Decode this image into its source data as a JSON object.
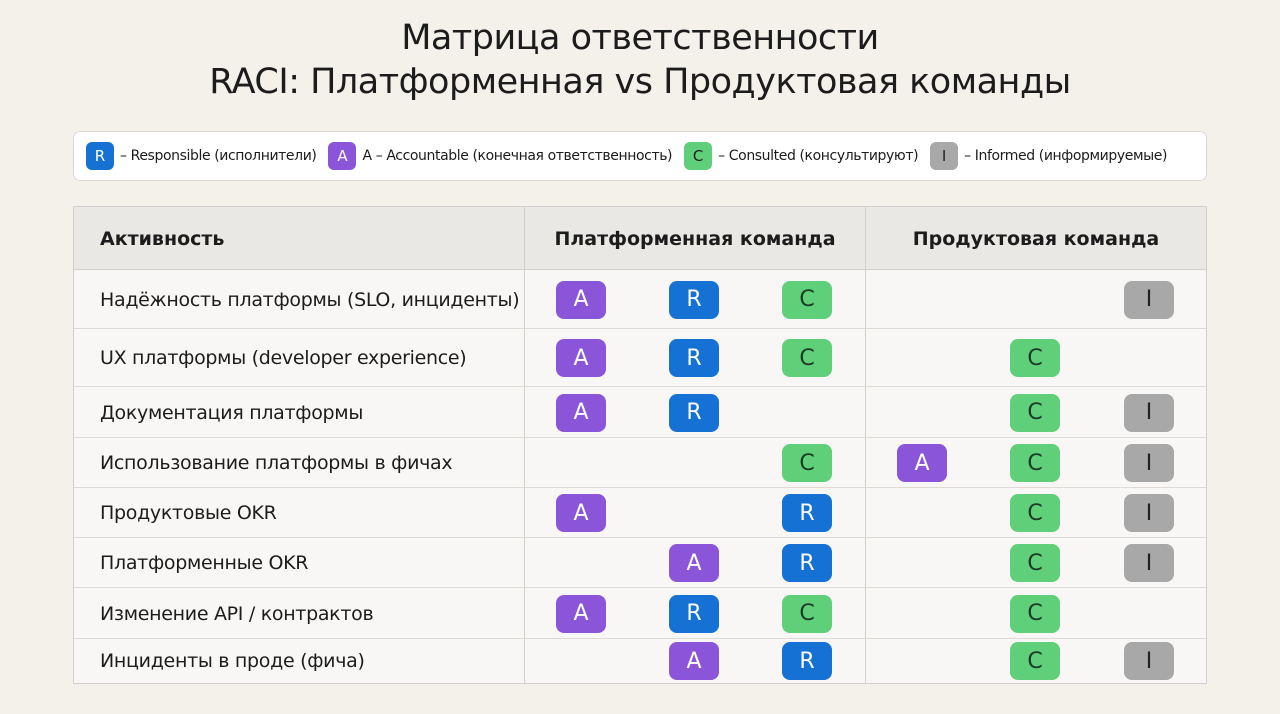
{
  "title": {
    "line1": "Матрица ответственности",
    "line2": "RACI: Платформенная vs Продуктовая команды"
  },
  "legend": [
    {
      "letter": "R",
      "text": "– Responsible (исполнители)",
      "color": "#1671d4"
    },
    {
      "letter": "A",
      "text": "A – Accountable (конечная ответственность)",
      "color": "#8b55d9"
    },
    {
      "letter": "C",
      "text": "– Consulted (консультируют)",
      "color": "#5fcf7a"
    },
    {
      "letter": "I",
      "text": "– Informed (информируемые)",
      "color": "#a8a8a8"
    }
  ],
  "table": {
    "headers": {
      "activity": "Активность",
      "platform": "Платформенная команда",
      "product": "Продуктовая команда"
    },
    "rows": [
      {
        "activity": "Надёжность платформы (SLO, инциденты)",
        "platform": [
          "A",
          "R",
          "C"
        ],
        "product": [
          "",
          "",
          "I"
        ]
      },
      {
        "activity": "UX платформы (developer experience)",
        "platform": [
          "A",
          "R",
          "C"
        ],
        "product": [
          "",
          "C",
          ""
        ]
      },
      {
        "activity": "Документация платформы",
        "platform": [
          "A",
          "R",
          ""
        ],
        "product": [
          "",
          "C",
          "I"
        ]
      },
      {
        "activity": "Использование платформы в фичах",
        "platform": [
          "",
          "",
          "C"
        ],
        "product": [
          "A",
          "C",
          "I"
        ]
      },
      {
        "activity": "Продуктовые OKR",
        "platform": [
          "A",
          "",
          "R"
        ],
        "product": [
          "",
          "C",
          "I"
        ]
      },
      {
        "activity": "Платформенные OKR",
        "platform": [
          "",
          "A",
          "R"
        ],
        "product": [
          "",
          "C",
          "I"
        ]
      },
      {
        "activity": "Изменение API / контрактов",
        "platform": [
          "A",
          "R",
          "C"
        ],
        "product": [
          "",
          "C",
          ""
        ]
      },
      {
        "activity": "Инциденты в проде (фича)",
        "platform": [
          "",
          "A",
          "R"
        ],
        "product": [
          "",
          "C",
          "I"
        ]
      }
    ]
  }
}
